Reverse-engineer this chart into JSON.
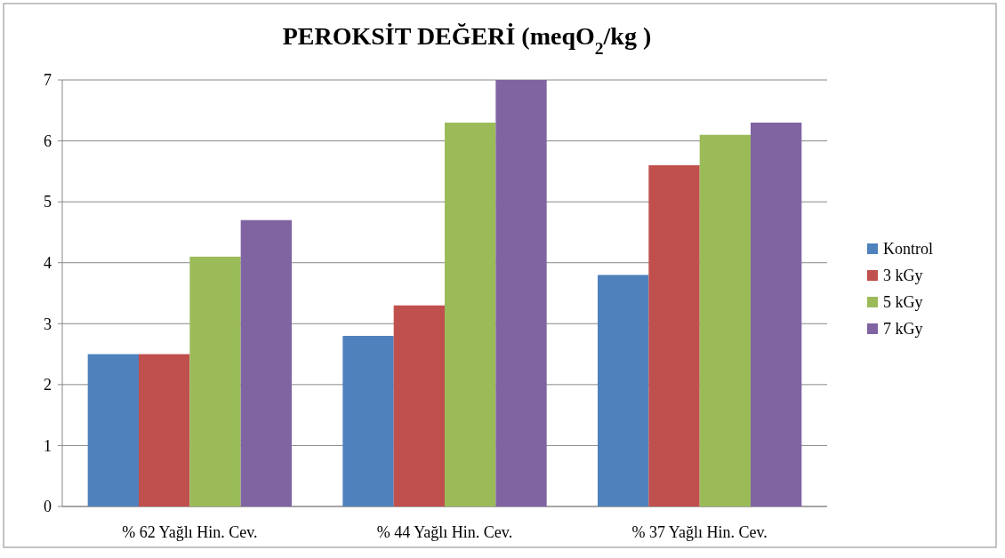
{
  "chart_data": {
    "type": "bar",
    "title": "PEROKSİT DEĞERİ (meqO$_{2}$/kg  )",
    "categories": [
      "% 62 Yağlı Hin. Cev.",
      "% 44 Yağlı Hin. Cev.",
      "% 37 Yağlı Hin. Cev."
    ],
    "series": [
      {
        "name": "Kontrol",
        "color": "#4f81bd",
        "values": [
          2.5,
          2.8,
          3.8
        ]
      },
      {
        "name": "3 kGy",
        "color": "#c0504d",
        "values": [
          2.5,
          3.3,
          5.6
        ]
      },
      {
        "name": "5 kGy",
        "color": "#9bbb59",
        "values": [
          4.1,
          6.3,
          6.1
        ]
      },
      {
        "name": "7 kGy",
        "color": "#8064a2",
        "values": [
          4.7,
          7.0,
          6.3
        ]
      }
    ],
    "ylim": [
      0,
      7
    ],
    "yticks": [
      0,
      1,
      2,
      3,
      4,
      5,
      6,
      7
    ],
    "grid": "y",
    "legend": "right"
  }
}
